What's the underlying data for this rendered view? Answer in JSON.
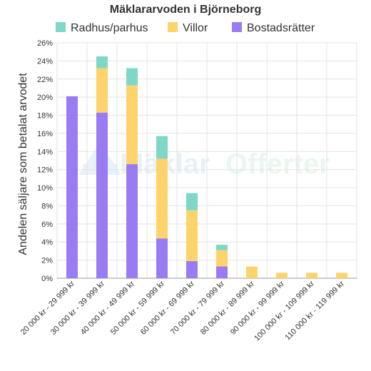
{
  "chart_data": {
    "type": "bar",
    "stacked": true,
    "title": "Mäklararvoden i Björneborg",
    "xlabel": "",
    "ylabel": "Andelen säljare som betalat arvodet",
    "categories": [
      "20 000 kr - 29 999 kr",
      "30 000 kr - 39 999 kr",
      "40 000 kr - 49 999 kr",
      "50 000 kr - 59 999 kr",
      "60 000 kr - 69 999 kr",
      "70 000 kr - 79 999 kr",
      "80 000 kr - 89 999 kr",
      "90 000 kr - 99 999 kr",
      "100 000 kr - 109 999 kr",
      "110 000 kr - 119 999 kr"
    ],
    "series": [
      {
        "name": "Bostadsrätter",
        "color": "#9a7cf2",
        "values": [
          20.1,
          18.3,
          12.6,
          4.4,
          1.9,
          1.3,
          0,
          0,
          0,
          0
        ]
      },
      {
        "name": "Villor",
        "color": "#ffd36b",
        "values": [
          0,
          4.9,
          8.7,
          8.8,
          5.6,
          1.8,
          1.3,
          0.6,
          0.6,
          0.6
        ]
      },
      {
        "name": "Radhus/parhus",
        "color": "#7fd8c7",
        "values": [
          0,
          1.3,
          1.9,
          2.5,
          1.9,
          0.6,
          0,
          0,
          0,
          0
        ]
      }
    ],
    "legend_order": [
      "Radhus/parhus",
      "Villor",
      "Bostadsrätter"
    ],
    "ylim": [
      0,
      26
    ],
    "y_ticks": [
      "0%",
      "2%",
      "4%",
      "6%",
      "8%",
      "10%",
      "12%",
      "14%",
      "16%",
      "18%",
      "20%",
      "22%",
      "24%",
      "26%"
    ],
    "grid": true,
    "legend_position": "top"
  },
  "watermark": {
    "text_left": "Mäklar",
    "text_right": "Offerter",
    "icon": "house-logo-icon"
  }
}
